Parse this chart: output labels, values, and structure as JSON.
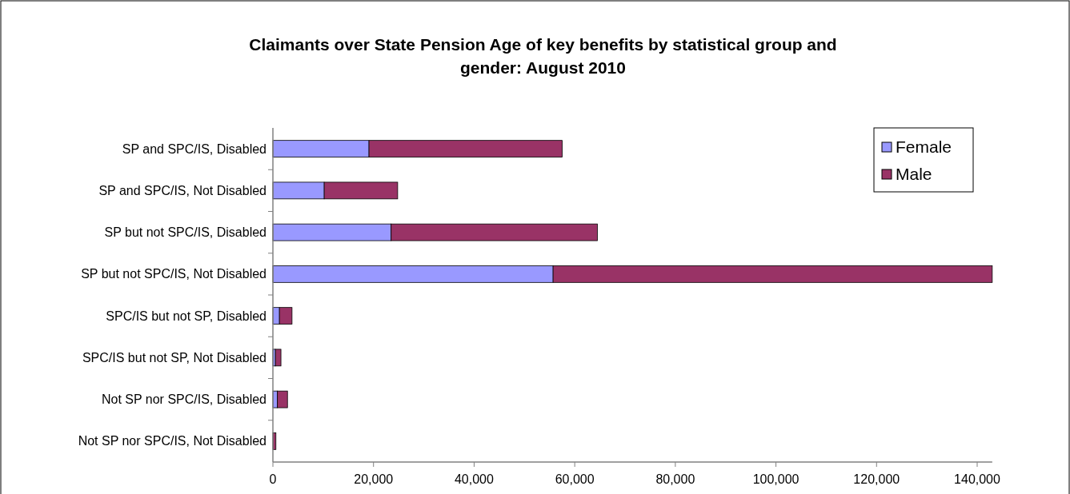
{
  "chart_data": {
    "type": "bar",
    "orientation": "horizontal",
    "stacked": true,
    "title": "Claimants over State Pension Age of key benefits by statistical group and gender: August  2010",
    "categories": [
      "SP and SPC/IS, Disabled",
      "SP and SPC/IS, Not Disabled",
      "SP but not SPC/IS, Disabled",
      "SP but not SPC/IS, Not Disabled",
      "SPC/IS but not SP, Disabled",
      "SPC/IS but not SP, Not Disabled",
      "Not SP nor SPC/IS, Disabled",
      "Not SP nor SPC/IS, Not Disabled"
    ],
    "series": [
      {
        "name": "Female",
        "color": "#9999ff",
        "values": [
          19100,
          10200,
          23500,
          55700,
          1300,
          500,
          900,
          null
        ]
      },
      {
        "name": "Male",
        "color": "#993366",
        "values": [
          38400,
          14600,
          41000,
          87300,
          2500,
          1100,
          2000,
          600
        ]
      }
    ],
    "xlim": [
      0,
      143000
    ],
    "xticks": [
      {
        "value": 0,
        "label": "0"
      },
      {
        "value": 20000,
        "label": "20,000"
      },
      {
        "value": 40000,
        "label": "40,000"
      },
      {
        "value": 60000,
        "label": "60,000"
      },
      {
        "value": 80000,
        "label": "80,000"
      },
      {
        "value": 100000,
        "label": "100,000"
      },
      {
        "value": 120000,
        "label": "120,000"
      },
      {
        "value": 140000,
        "label": "140,000"
      }
    ],
    "legend": "top right",
    "grid": false
  }
}
